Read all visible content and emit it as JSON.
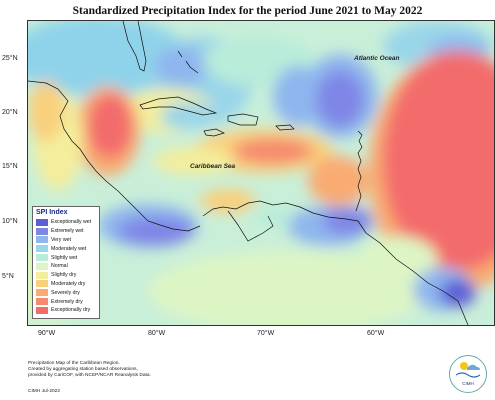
{
  "title": "Standardized Precipitation Index for the period June 2021 to May 2022",
  "labels": {
    "atlantic": "Atlantic Ocean",
    "caribbean": "Caribbean Sea"
  },
  "latitudes": [
    "25°N",
    "20°N",
    "15°N",
    "10°N",
    "5°N"
  ],
  "longitudes": [
    "90°W",
    "80°W",
    "70°W",
    "60°W"
  ],
  "legend": {
    "title": "SPI Index",
    "items": [
      {
        "label": "Exceptionally wet",
        "color": "#5b5fd6"
      },
      {
        "label": "Extremely wet",
        "color": "#7f86e6"
      },
      {
        "label": "Very wet",
        "color": "#8fb6ee"
      },
      {
        "label": "Moderately wet",
        "color": "#9ad6ea"
      },
      {
        "label": "Slightly wet",
        "color": "#b9ecd9"
      },
      {
        "label": "Normal",
        "color": "#ddf5c4"
      },
      {
        "label": "Slightly dry",
        "color": "#f4ee9c"
      },
      {
        "label": "Moderately dry",
        "color": "#f9cf7c"
      },
      {
        "label": "Severely dry",
        "color": "#f9ab72"
      },
      {
        "label": "Extremely dry",
        "color": "#f68a6e"
      },
      {
        "label": "Exceptionally dry",
        "color": "#f36c6c"
      }
    ]
  },
  "footer": {
    "line1": "Precipitation Map of the Caribbean Region.",
    "line2": "Created by aggregating station based observations,",
    "line3": "provided by CariCOF, with NCEP/NCAR Reanalysis Data.",
    "credit": "CIMH Jul-2022"
  },
  "logo": {
    "text": "CIMH"
  }
}
